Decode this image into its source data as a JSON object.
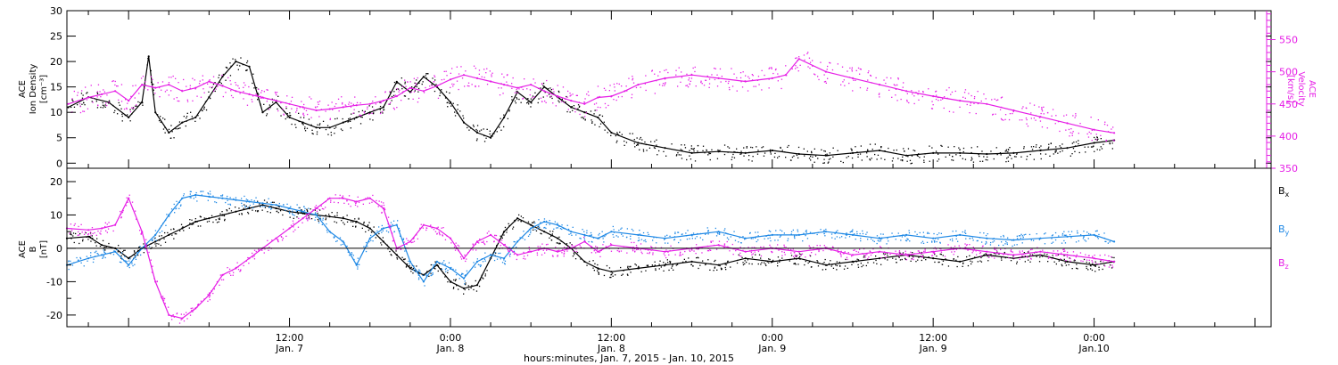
{
  "colors": {
    "black": "#000000",
    "magenta": "#e61ee6",
    "blue": "#1e88e5"
  },
  "xaxis": {
    "caption": "hours:minutes, Jan.  7, 2015 - Jan. 10, 2015",
    "range_hours": [
      -4.6,
      85.2
    ],
    "ticks": [
      {
        "hour": 12,
        "time": "12:00",
        "date": "Jan. 7"
      },
      {
        "hour": 24,
        "time": "0:00",
        "date": "Jan. 8"
      },
      {
        "hour": 36,
        "time": "12:00",
        "date": "Jan. 8"
      },
      {
        "hour": 48,
        "time": "0:00",
        "date": "Jan. 9"
      },
      {
        "hour": 60,
        "time": "12:00",
        "date": "Jan. 9"
      },
      {
        "hour": 72,
        "time": "0:00",
        "date": "Jan.10"
      }
    ]
  },
  "chart_data": [
    {
      "type": "scatter",
      "panel": "top",
      "left_axis": {
        "title_lines": [
          "ACE",
          "Ion Density",
          "[cm⁻³]"
        ],
        "ylim": [
          -1,
          30
        ],
        "ticks": [
          0,
          5,
          10,
          15,
          20,
          25,
          30
        ]
      },
      "right_axis": {
        "title_lines": [
          "ACE",
          "Velocity",
          "[km/s]"
        ],
        "ylim": [
          350,
          595
        ],
        "ticks": [
          350,
          400,
          450,
          500,
          550
        ]
      },
      "series": [
        {
          "color": "#000000",
          "axis": "left",
          "x": [
            -4.5,
            -3,
            -1.5,
            0,
            1,
            1.5,
            2,
            3,
            4,
            5,
            6,
            7,
            8,
            9,
            10,
            11,
            12,
            13,
            14,
            15,
            16,
            17,
            18,
            19,
            20,
            21,
            22,
            23,
            24,
            25,
            26,
            27,
            28,
            29,
            30,
            31,
            32,
            33,
            34,
            35,
            36,
            38,
            40,
            42,
            44,
            46,
            48,
            50,
            52,
            54,
            56,
            58,
            60,
            62,
            64,
            66,
            68,
            70,
            72,
            73.5
          ],
          "values": [
            11,
            13,
            12,
            9,
            12,
            21,
            10,
            6,
            8,
            9,
            13,
            17,
            20,
            19,
            10,
            12,
            9,
            8,
            7,
            7,
            8,
            9,
            10,
            11,
            16,
            14,
            17,
            15,
            12,
            8,
            6,
            5,
            9,
            14,
            12,
            15,
            13,
            11,
            10,
            9,
            6,
            4,
            3,
            2,
            2.3,
            2,
            2.5,
            1.8,
            1.5,
            2,
            2.5,
            1.5,
            2,
            2,
            1.8,
            2,
            2.5,
            3,
            4,
            4.5
          ]
        },
        {
          "color": "#e61ee6",
          "axis": "right",
          "x": [
            -4.5,
            -3,
            -2,
            -1,
            0,
            1,
            2,
            3,
            4,
            5,
            6,
            7,
            8,
            9,
            10,
            11,
            12,
            13,
            14,
            15,
            16,
            17,
            18,
            19,
            20,
            21,
            22,
            23,
            24,
            25,
            26,
            27,
            28,
            29,
            30,
            31,
            32,
            33,
            34,
            35,
            36,
            37,
            38,
            40,
            42,
            44,
            46,
            48,
            49,
            50,
            52,
            54,
            56,
            58,
            60,
            62,
            64,
            66,
            68,
            70,
            72,
            73.5
          ],
          "values": [
            450,
            460,
            465,
            470,
            455,
            480,
            475,
            480,
            470,
            475,
            485,
            478,
            470,
            465,
            460,
            455,
            450,
            445,
            440,
            442,
            445,
            448,
            450,
            455,
            462,
            475,
            470,
            478,
            488,
            495,
            490,
            485,
            480,
            475,
            480,
            470,
            462,
            455,
            450,
            460,
            462,
            470,
            480,
            490,
            495,
            490,
            485,
            490,
            495,
            520,
            500,
            490,
            480,
            470,
            462,
            455,
            450,
            440,
            430,
            420,
            410,
            405
          ]
        }
      ]
    },
    {
      "type": "scatter",
      "panel": "bottom",
      "left_axis": {
        "title_lines": [
          "ACE",
          "B",
          "[nT]"
        ],
        "ylim": [
          -23.5,
          24
        ],
        "ticks": [
          -20,
          -10,
          0,
          10,
          20
        ]
      },
      "legend": [
        "Bx",
        "By",
        "Bz"
      ],
      "series": [
        {
          "name": "Bx",
          "color": "#000000",
          "x": [
            -4.6,
            -3,
            -2,
            -1,
            0,
            1,
            2,
            3,
            4,
            5,
            6,
            7,
            8,
            9,
            10,
            11,
            12,
            13,
            14,
            15,
            16,
            17,
            18,
            19,
            20,
            21,
            22,
            23,
            24,
            25,
            26,
            27,
            28,
            29,
            30,
            31,
            32,
            33,
            34,
            35,
            36,
            38,
            40,
            42,
            44,
            46,
            48,
            50,
            52,
            54,
            56,
            58,
            60,
            62,
            64,
            66,
            68,
            70,
            72,
            73.5
          ],
          "values": [
            3,
            3.5,
            1,
            0,
            -3,
            0,
            2,
            4,
            6,
            8,
            9,
            10,
            11,
            12,
            13,
            12,
            11,
            10.5,
            10,
            9.5,
            9,
            8,
            6,
            2,
            -2,
            -6,
            -8,
            -5,
            -10,
            -12,
            -11,
            -3,
            5,
            9,
            7,
            5,
            3,
            0,
            -4,
            -6,
            -7,
            -6,
            -5,
            -4,
            -5,
            -3,
            -4,
            -3,
            -5,
            -4,
            -3,
            -2,
            -3,
            -4,
            -2,
            -3,
            -2,
            -4,
            -5,
            -4
          ]
        },
        {
          "name": "By",
          "color": "#1e88e5",
          "x": [
            -4.6,
            -3,
            -2,
            -1,
            0,
            1,
            2,
            3,
            4,
            5,
            6,
            7,
            8,
            9,
            10,
            11,
            12,
            13,
            14,
            15,
            16,
            17,
            18,
            19,
            20,
            21,
            22,
            23,
            24,
            25,
            26,
            27,
            28,
            29,
            30,
            31,
            32,
            33,
            34,
            35,
            36,
            38,
            40,
            42,
            44,
            46,
            48,
            50,
            52,
            54,
            56,
            58,
            60,
            62,
            64,
            66,
            68,
            70,
            72,
            73.5
          ],
          "values": [
            -5,
            -3,
            -2,
            -1,
            -5,
            0,
            4,
            10,
            15,
            16,
            15.5,
            15,
            14.5,
            14,
            13.5,
            13,
            12,
            11,
            10,
            5,
            2,
            -5,
            3,
            6,
            7,
            -4,
            -10,
            -4,
            -6,
            -9,
            -4,
            -2,
            -3,
            2,
            6,
            8,
            7,
            5,
            4,
            3,
            5,
            4,
            3,
            4,
            5,
            3,
            4,
            4,
            5,
            4,
            3,
            4,
            3,
            4,
            3,
            2.5,
            3,
            3.5,
            4,
            2
          ]
        },
        {
          "name": "Bz",
          "color": "#e61ee6",
          "x": [
            -4.6,
            -3,
            -2,
            -1,
            0,
            1,
            2,
            3,
            4,
            5,
            6,
            7,
            8,
            9,
            10,
            11,
            12,
            13,
            14,
            15,
            16,
            17,
            18,
            19,
            20,
            21,
            22,
            23,
            24,
            25,
            26,
            27,
            28,
            29,
            30,
            31,
            32,
            33,
            34,
            35,
            36,
            38,
            40,
            42,
            44,
            46,
            48,
            50,
            52,
            54,
            56,
            58,
            60,
            62,
            64,
            66,
            68,
            70,
            72,
            73.5
          ],
          "values": [
            6,
            5.5,
            6,
            7,
            15,
            5,
            -10,
            -20,
            -21,
            -18,
            -14,
            -8,
            -6,
            -3,
            0,
            3,
            6,
            9,
            12,
            15,
            15,
            14,
            15,
            12,
            0,
            2,
            7,
            6,
            3,
            -3,
            2,
            4,
            1,
            -2,
            -1,
            0,
            -1,
            0,
            2,
            -1,
            1,
            0,
            -1,
            0,
            1,
            -1,
            0,
            -1,
            0,
            -2,
            -1,
            -2,
            -1,
            0,
            -1,
            -2,
            -1,
            -2,
            -3,
            -4
          ]
        }
      ]
    }
  ]
}
